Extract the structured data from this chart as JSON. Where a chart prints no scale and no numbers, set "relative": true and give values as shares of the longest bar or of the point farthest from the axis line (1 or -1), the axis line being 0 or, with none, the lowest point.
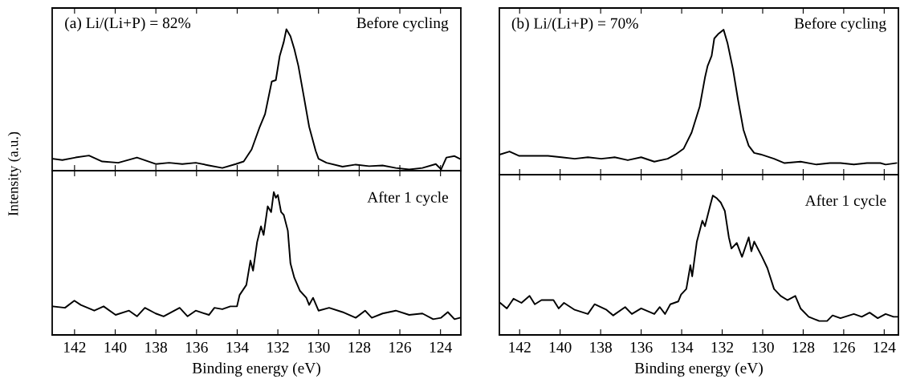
{
  "chart_data": [
    {
      "type": "line",
      "relative": true,
      "tick_labels": false,
      "xlim": [
        143.1,
        123.0
      ],
      "xticks": [
        {
          "value": 142,
          "label": null
        },
        {
          "value": 140,
          "label": null
        },
        {
          "value": 138,
          "label": null
        },
        {
          "value": 136,
          "label": null
        },
        {
          "value": 134,
          "label": null
        },
        {
          "value": 132,
          "label": null
        },
        {
          "value": 130,
          "label": null
        },
        {
          "value": 128,
          "label": null
        },
        {
          "value": 126,
          "label": null
        },
        {
          "value": 124,
          "label": null
        }
      ],
      "ylabel": "Intensity (a.u.)",
      "annotations": [
        "(a) Li/(Li+P) = 82%",
        "Before cycling"
      ],
      "series": [
        {
          "color": "#000000",
          "x": [
            143.06,
            142.6,
            141.95,
            141.29,
            140.64,
            139.85,
            138.93,
            138.01,
            137.35,
            136.7,
            136.04,
            135.39,
            134.73,
            134.07,
            133.68,
            133.29,
            132.89,
            132.63,
            132.3,
            132.1,
            131.91,
            131.71,
            131.58,
            131.38,
            131.19,
            130.99,
            130.73,
            130.46,
            130.14,
            130.0,
            129.61,
            128.82,
            128.17,
            127.51,
            126.85,
            126.2,
            125.54,
            124.89,
            124.23,
            123.97,
            123.71,
            123.31,
            123.05
          ],
          "values": [
            0.084,
            0.075,
            0.093,
            0.107,
            0.065,
            0.056,
            0.093,
            0.047,
            0.056,
            0.047,
            0.056,
            0.037,
            0.019,
            0.047,
            0.065,
            0.15,
            0.31,
            0.4,
            0.63,
            0.64,
            0.81,
            0.91,
            1.0,
            0.95,
            0.86,
            0.74,
            0.53,
            0.31,
            0.14,
            0.084,
            0.056,
            0.028,
            0.043,
            0.032,
            0.037,
            0.019,
            0.009,
            0.019,
            0.047,
            0.009,
            0.093,
            0.103,
            0.084
          ]
        }
      ]
    },
    {
      "type": "line",
      "relative": true,
      "tick_labels": "x",
      "xlim": [
        143.1,
        123.0
      ],
      "xticks": [
        142,
        140,
        138,
        136,
        134,
        132,
        130,
        128,
        126,
        124
      ],
      "xlabel": "Binding energy (eV)",
      "annotations": [
        "After 1 cycle"
      ],
      "series": [
        {
          "color": "#000000",
          "x": [
            143.06,
            142.47,
            142.01,
            141.69,
            141.03,
            140.57,
            139.98,
            139.32,
            138.93,
            138.54,
            138.01,
            137.62,
            136.83,
            136.44,
            136.04,
            135.39,
            135.12,
            134.73,
            134.34,
            134.01,
            133.88,
            133.55,
            133.35,
            133.22,
            133.02,
            132.83,
            132.7,
            132.5,
            132.33,
            132.2,
            132.1,
            132.0,
            131.84,
            131.71,
            131.51,
            131.38,
            131.19,
            130.92,
            130.6,
            130.46,
            130.27,
            130.0,
            129.48,
            128.82,
            128.17,
            127.71,
            127.38,
            126.85,
            126.2,
            125.54,
            124.89,
            124.36,
            123.97,
            123.64,
            123.31,
            123.05
          ],
          "values": [
            0.2,
            0.19,
            0.24,
            0.21,
            0.17,
            0.2,
            0.14,
            0.17,
            0.13,
            0.19,
            0.15,
            0.13,
            0.19,
            0.13,
            0.17,
            0.14,
            0.19,
            0.18,
            0.2,
            0.2,
            0.28,
            0.35,
            0.52,
            0.45,
            0.65,
            0.76,
            0.7,
            0.9,
            0.86,
            1.0,
            0.96,
            0.98,
            0.86,
            0.84,
            0.73,
            0.5,
            0.4,
            0.31,
            0.26,
            0.21,
            0.26,
            0.17,
            0.19,
            0.16,
            0.12,
            0.17,
            0.12,
            0.15,
            0.17,
            0.14,
            0.15,
            0.11,
            0.12,
            0.16,
            0.11,
            0.12
          ]
        }
      ]
    },
    {
      "type": "line",
      "relative": true,
      "tick_labels": false,
      "xlim": [
        143.0,
        123.3
      ],
      "xticks": [
        {
          "value": 142,
          "label": null
        },
        {
          "value": 140,
          "label": null
        },
        {
          "value": 138,
          "label": null
        },
        {
          "value": 136,
          "label": null
        },
        {
          "value": 134,
          "label": null
        },
        {
          "value": 132,
          "label": null
        },
        {
          "value": 130,
          "label": null
        },
        {
          "value": 128,
          "label": null
        },
        {
          "value": 126,
          "label": null
        },
        {
          "value": 124,
          "label": null
        }
      ],
      "annotations": [
        "(b) Li/(Li+P) = 70%",
        "Before cycling"
      ],
      "series": [
        {
          "color": "#000000",
          "x": [
            142.96,
            142.5,
            142.04,
            141.25,
            140.6,
            139.94,
            139.28,
            138.63,
            137.97,
            137.31,
            136.66,
            136.0,
            135.35,
            134.69,
            134.3,
            133.9,
            133.51,
            133.11,
            132.85,
            132.72,
            132.52,
            132.39,
            132.2,
            131.93,
            131.74,
            131.47,
            131.21,
            130.95,
            130.69,
            130.42,
            130.1,
            129.44,
            128.92,
            128.13,
            127.34,
            126.68,
            126.16,
            125.5,
            124.85,
            124.19,
            123.93,
            123.4
          ],
          "values": [
            0.14,
            0.16,
            0.13,
            0.13,
            0.13,
            0.12,
            0.11,
            0.12,
            0.11,
            0.12,
            0.1,
            0.12,
            0.09,
            0.11,
            0.14,
            0.18,
            0.29,
            0.47,
            0.67,
            0.75,
            0.82,
            0.94,
            0.97,
            1.0,
            0.91,
            0.73,
            0.51,
            0.31,
            0.2,
            0.15,
            0.14,
            0.11,
            0.08,
            0.09,
            0.07,
            0.08,
            0.08,
            0.07,
            0.08,
            0.08,
            0.07,
            0.08
          ]
        }
      ]
    },
    {
      "type": "line",
      "relative": true,
      "tick_labels": "x",
      "xlim": [
        143.0,
        123.3
      ],
      "xticks": [
        142,
        140,
        138,
        136,
        134,
        132,
        130,
        128,
        126,
        124
      ],
      "xlabel": "Binding energy (eV)",
      "annotations": [
        "After 1 cycle"
      ],
      "series": [
        {
          "color": "#000000",
          "x": [
            142.96,
            142.63,
            142.3,
            141.91,
            141.51,
            141.25,
            140.92,
            140.33,
            140.07,
            139.81,
            139.28,
            138.63,
            138.3,
            137.71,
            137.38,
            136.79,
            136.46,
            136.0,
            135.35,
            135.08,
            134.82,
            134.56,
            134.17,
            134.03,
            133.77,
            133.57,
            133.48,
            133.25,
            132.98,
            132.85,
            132.59,
            132.46,
            132.26,
            132.07,
            131.87,
            131.67,
            131.54,
            131.28,
            131.02,
            130.69,
            130.56,
            130.42,
            130.03,
            129.77,
            129.44,
            129.11,
            128.78,
            128.39,
            128.13,
            127.73,
            127.21,
            126.82,
            126.55,
            126.16,
            125.5,
            125.11,
            124.72,
            124.32,
            123.93,
            123.54,
            123.34
          ],
          "values": [
            0.23,
            0.19,
            0.26,
            0.23,
            0.28,
            0.22,
            0.25,
            0.25,
            0.19,
            0.23,
            0.18,
            0.15,
            0.22,
            0.18,
            0.14,
            0.2,
            0.15,
            0.19,
            0.15,
            0.2,
            0.15,
            0.22,
            0.24,
            0.29,
            0.33,
            0.5,
            0.42,
            0.67,
            0.82,
            0.78,
            0.93,
            1.0,
            0.98,
            0.95,
            0.89,
            0.7,
            0.62,
            0.66,
            0.56,
            0.7,
            0.6,
            0.67,
            0.56,
            0.48,
            0.33,
            0.28,
            0.25,
            0.28,
            0.19,
            0.13,
            0.1,
            0.1,
            0.14,
            0.12,
            0.15,
            0.13,
            0.16,
            0.12,
            0.15,
            0.13,
            0.13
          ]
        }
      ]
    }
  ]
}
